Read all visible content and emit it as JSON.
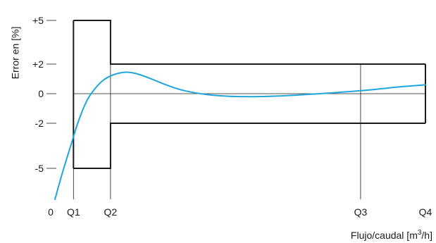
{
  "chart_data": {
    "type": "line",
    "title": "",
    "ylabel": "Error en [%]",
    "xlabel_main": "Flujo/caudal [m",
    "xlabel_sup": "3",
    "xlabel_tail": "/h]",
    "x_ticks": [
      "0",
      "Q1",
      "Q2",
      "Q3",
      "Q4"
    ],
    "x_positions": [
      0,
      1,
      3,
      16.5,
      20
    ],
    "y_ticks": [
      "+5",
      "+2",
      "0",
      "-2",
      "-5"
    ],
    "y_values": [
      5,
      2,
      0,
      -2,
      -5
    ],
    "xlim": [
      0,
      20
    ],
    "ylim": [
      -7,
      5
    ],
    "series": [
      {
        "values": [
          [
            0,
            -7.0
          ],
          [
            0.4,
            -5.3
          ],
          [
            0.8,
            -3.7
          ],
          [
            1.0,
            -2.9
          ],
          [
            1.2,
            -2.1
          ],
          [
            1.5,
            -1.1
          ],
          [
            1.8,
            -0.3
          ],
          [
            2.2,
            0.4
          ],
          [
            2.6,
            0.9
          ],
          [
            3.0,
            1.2
          ],
          [
            3.5,
            1.4
          ],
          [
            3.9,
            1.45
          ],
          [
            4.4,
            1.35
          ],
          [
            5.0,
            1.1
          ],
          [
            6.0,
            0.6
          ],
          [
            7.0,
            0.2
          ],
          [
            8.5,
            -0.1
          ],
          [
            10.5,
            -0.2
          ],
          [
            13.0,
            -0.1
          ],
          [
            16.5,
            0.2
          ],
          [
            18.5,
            0.45
          ],
          [
            20.0,
            0.6
          ]
        ]
      }
    ],
    "tolerance_envelope": {
      "upper": [
        [
          1,
          5
        ],
        [
          3,
          5
        ],
        [
          3,
          2
        ],
        [
          20,
          2
        ]
      ],
      "lower": [
        [
          1,
          -5
        ],
        [
          3,
          -5
        ],
        [
          3,
          -2
        ],
        [
          20,
          -2
        ]
      ]
    },
    "colors": {
      "curve": "#1ea7dc",
      "envelope": "#1a1a1a",
      "gridlines": "#1a1a1a"
    },
    "grid": false,
    "legend": "none"
  }
}
